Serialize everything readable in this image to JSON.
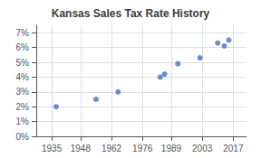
{
  "chart_data": {
    "type": "scatter",
    "title": "Kansas Sales Tax Rate History",
    "x": [
      1937,
      1955,
      1965,
      1984,
      1986,
      1992,
      2002,
      2010,
      2013,
      2015
    ],
    "values": [
      0.02,
      0.025,
      0.03,
      0.04,
      0.042,
      0.049,
      0.053,
      0.063,
      0.061,
      0.065
    ],
    "color": "#4472C4",
    "xlim": [
      1928,
      2023
    ],
    "xticks": [
      1935,
      1948,
      1962,
      1976,
      1989,
      2003,
      2017
    ],
    "ylim": [
      0,
      0.075
    ],
    "yticks": [
      {
        "value": 0.0,
        "label": "0%"
      },
      {
        "value": 0.01,
        "label": "1%"
      },
      {
        "value": 0.02,
        "label": "2%"
      },
      {
        "value": 0.03,
        "label": "3%"
      },
      {
        "value": 0.04,
        "label": "4%"
      },
      {
        "value": 0.05,
        "label": "5%"
      },
      {
        "value": 0.06,
        "label": "6%"
      },
      {
        "value": 0.07,
        "label": "7%"
      }
    ],
    "grid": true
  }
}
